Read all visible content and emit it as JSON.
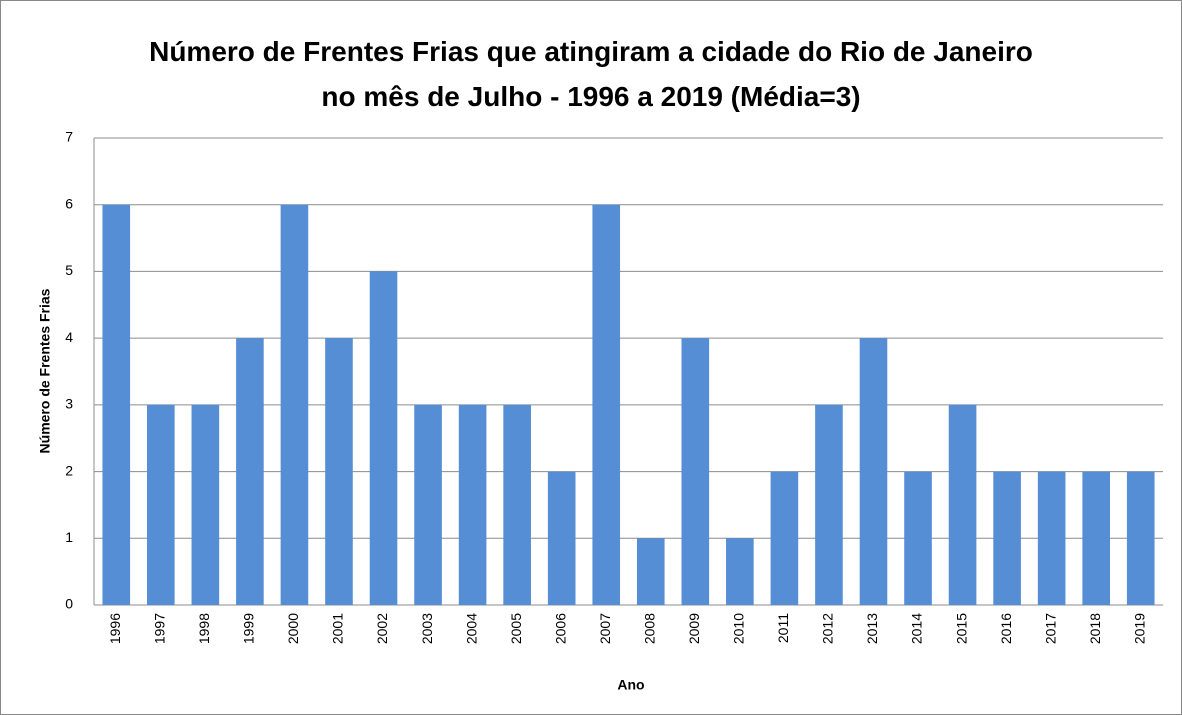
{
  "chart_data": {
    "type": "bar",
    "title": "Número de Frentes Frias que atingiram a cidade do Rio de Janeiro no mês de Julho - 1996 a 2019 (Média=3)",
    "xlabel": "Ano",
    "ylabel": "Número de Frentes Frias",
    "categories": [
      "1996",
      "1997",
      "1998",
      "1999",
      "2000",
      "2001",
      "2002",
      "2003",
      "2004",
      "2005",
      "2006",
      "2007",
      "2008",
      "2009",
      "2010",
      "2011",
      "2012",
      "2013",
      "2014",
      "2015",
      "2016",
      "2017",
      "2018",
      "2019"
    ],
    "values": [
      6,
      3,
      3,
      4,
      6,
      4,
      5,
      3,
      3,
      3,
      2,
      6,
      1,
      4,
      1,
      2,
      3,
      4,
      2,
      3,
      2,
      2,
      2,
      2
    ],
    "color": "#558ed5",
    "ylim": [
      0,
      7
    ],
    "yticks": [
      0,
      1,
      2,
      3,
      4,
      5,
      6,
      7
    ],
    "grid": true
  }
}
